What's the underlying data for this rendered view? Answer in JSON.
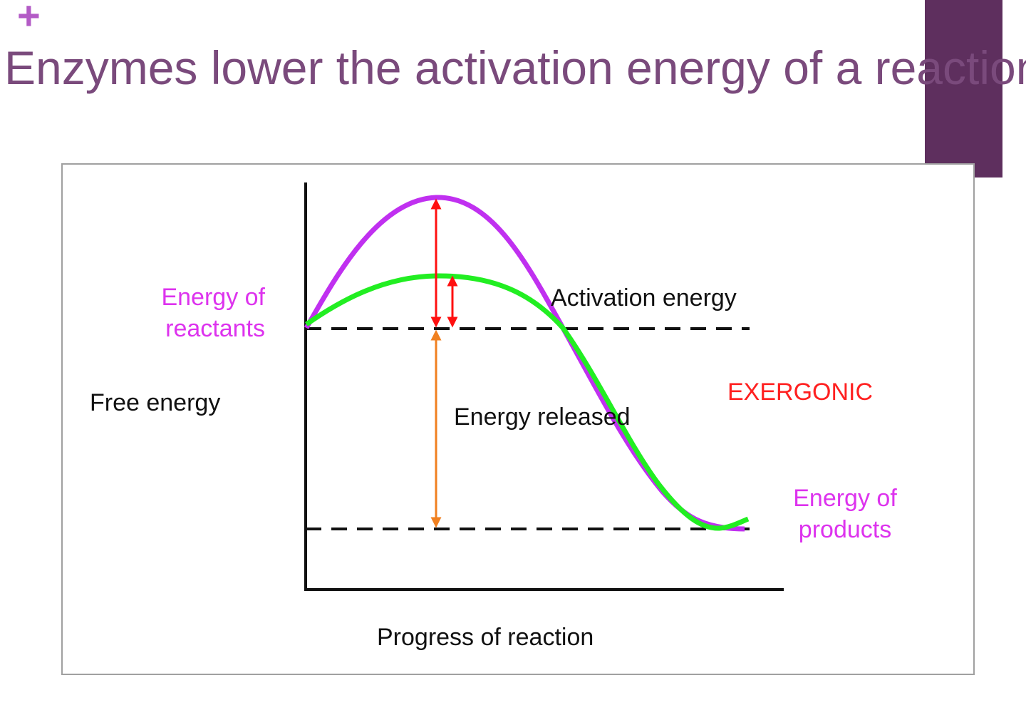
{
  "slide": {
    "title": "Enzymes lower the activation energy of a reaction",
    "plus_icon": "plus-icon",
    "accent_color": "#5e2f5e",
    "title_color": "#7a4a7c"
  },
  "diagram": {
    "y_axis_label": "Free energy",
    "x_axis_label": "Progress of reaction",
    "reactants_label": [
      "Energy of",
      "reactants"
    ],
    "products_label": [
      "Energy of",
      "products"
    ],
    "activation_label": "Activation energy",
    "released_label": "Energy released",
    "reaction_type": "EXERGONIC",
    "colors": {
      "uncatalyzed_curve": "#c030f0",
      "catalyzed_curve": "#22ee22",
      "activation_arrow": "#ff1010",
      "released_arrow": "#f08020",
      "reactants_text": "#dd33ee",
      "exergonic_text": "#ff2020"
    }
  }
}
